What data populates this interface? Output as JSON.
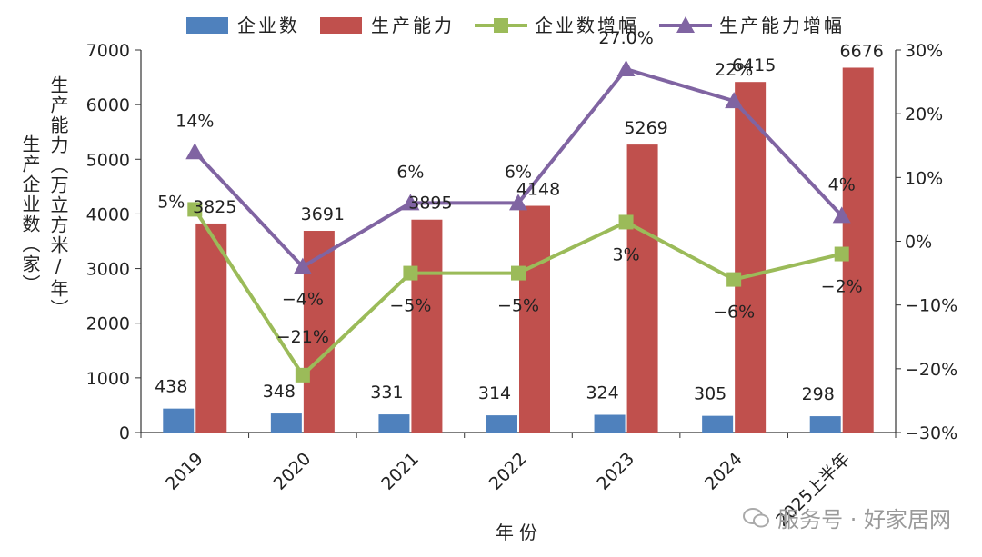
{
  "chart_data": {
    "type": "bar",
    "categories": [
      "2019",
      "2020",
      "2021",
      "2022",
      "2023",
      "2024",
      "2025上半年"
    ],
    "series": [
      {
        "name": "企业数",
        "kind": "bar",
        "axis": "left",
        "color": "#4f81bd",
        "values": [
          438,
          348,
          331,
          314,
          324,
          305,
          298
        ],
        "labels": [
          "438",
          "348",
          "331",
          "314",
          "324",
          "305",
          "298"
        ]
      },
      {
        "name": "生产能力",
        "kind": "bar",
        "axis": "left",
        "color": "#c0504d",
        "values": [
          3825,
          3691,
          3895,
          4148,
          5269,
          6415,
          6676
        ],
        "labels": [
          "3825",
          "3691",
          "3895",
          "4148",
          "5269",
          "6415",
          "6676"
        ]
      },
      {
        "name": "企业数增幅",
        "kind": "line",
        "axis": "right",
        "color": "#9bbb59",
        "marker": "square",
        "values": [
          5,
          -21,
          -5,
          -5,
          3,
          -6,
          -2
        ],
        "labels": [
          "5%",
          "−21%",
          "−5%",
          "−5%",
          "3%",
          "−6%",
          "−2%"
        ]
      },
      {
        "name": "生产能力增幅",
        "kind": "line",
        "axis": "right",
        "color": "#8064a2",
        "marker": "triangle",
        "values": [
          14,
          -4,
          6,
          6,
          27,
          22,
          4
        ],
        "labels": [
          "14%",
          "−4%",
          "6%",
          "6%",
          "27.0%",
          "22%",
          "4%"
        ]
      }
    ],
    "yleft_ticks": [
      "0",
      "1000",
      "2000",
      "3000",
      "4000",
      "5000",
      "6000",
      "7000"
    ],
    "yleft_lim": [
      0,
      7000
    ],
    "yright_ticks": [
      "−30%",
      "−20%",
      "−10%",
      "0%",
      "10%",
      "20%",
      "30%"
    ],
    "yright_lim": [
      -30,
      30
    ],
    "ylabel_left_outer": "生产企业数（家）",
    "ylabel_left_inner": "生产能力（万立方米/年）",
    "xlabel": "年份",
    "legend_position": "top"
  },
  "watermark": {
    "text": "服务号 · 好家居网",
    "icon": "wechat-icon"
  }
}
